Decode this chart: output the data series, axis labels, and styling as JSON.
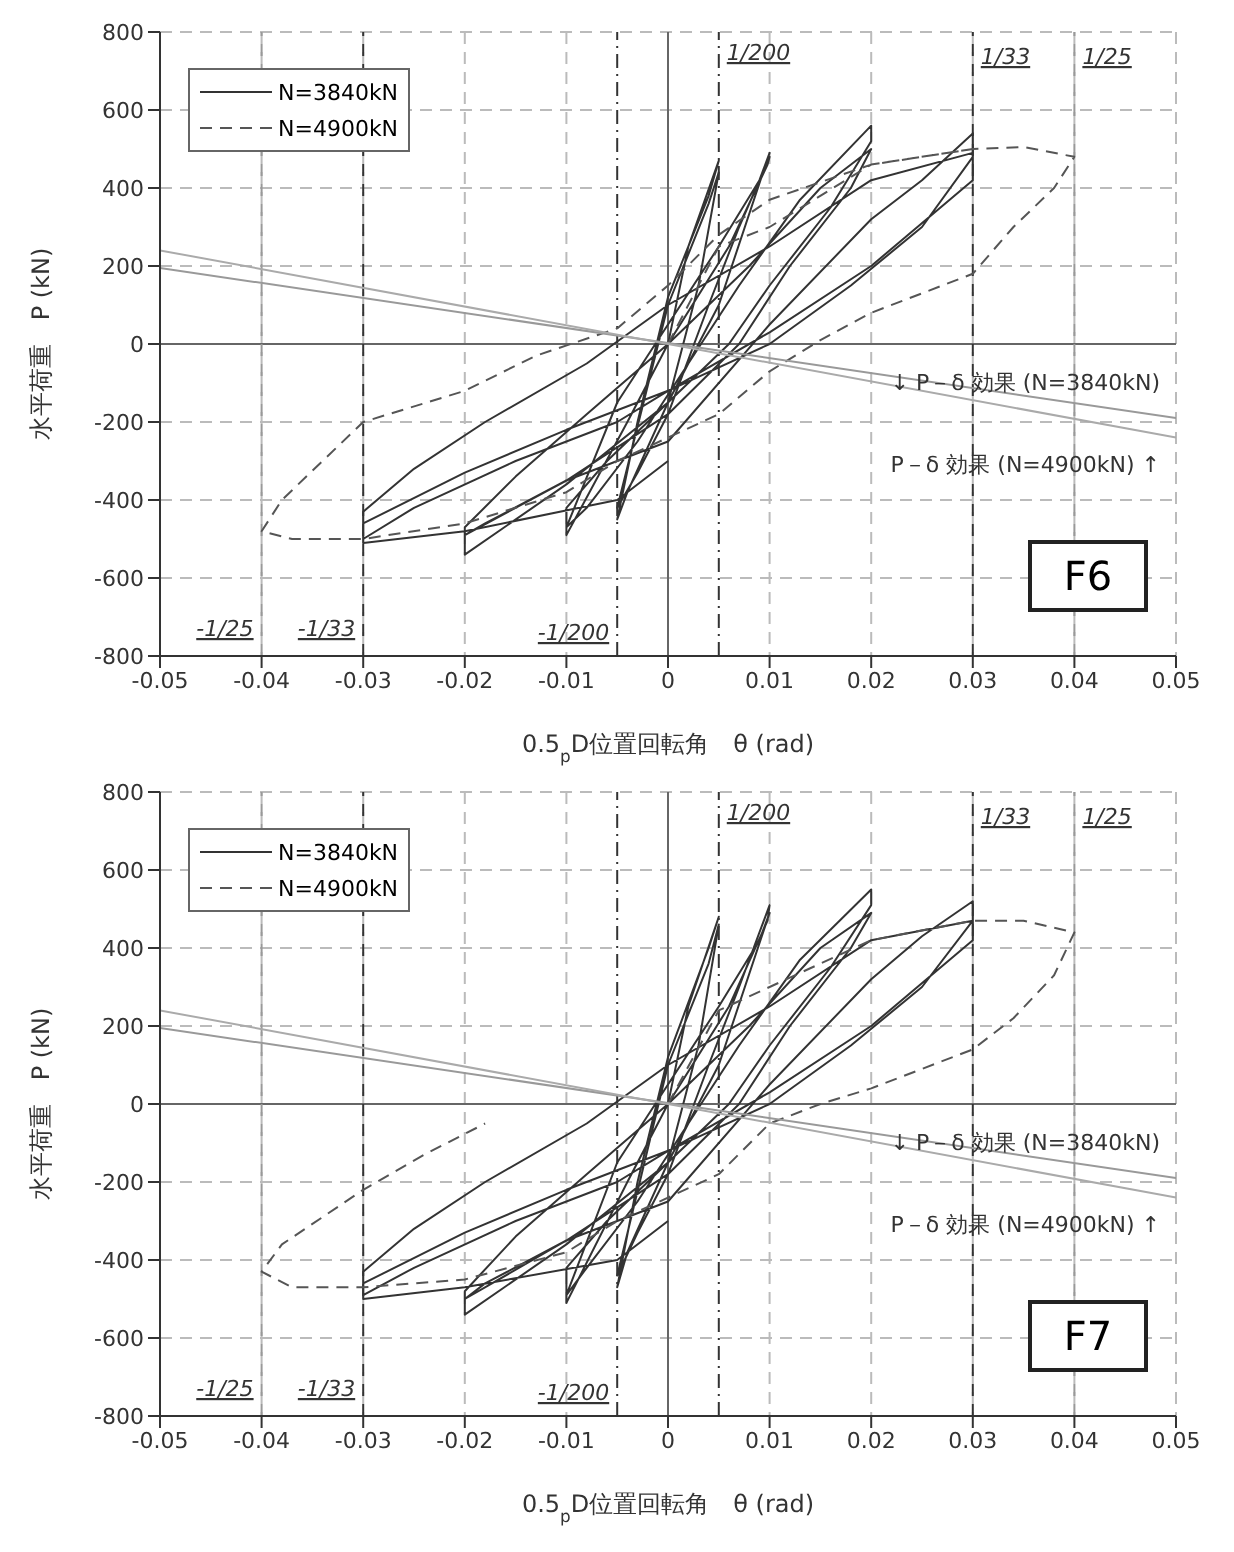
{
  "chart_data": [
    {
      "type": "line",
      "title": "F6",
      "xlabel": "0.5$_{p}$D位置回転角　θ (rad)",
      "ylabel": "水平荷重　P (kN)",
      "xlim": [
        -0.05,
        0.05
      ],
      "xticks": [
        -0.05,
        -0.04,
        -0.03,
        -0.02,
        -0.01,
        0,
        0.01,
        0.02,
        0.03,
        0.04,
        0.05
      ],
      "ylim": [
        -800,
        800
      ],
      "yticks": [
        -800,
        -600,
        -400,
        -200,
        0,
        200,
        400,
        600,
        800
      ],
      "grid": true,
      "legend": "top left",
      "series": [
        {
          "color": "#666666",
          "line_style": "solid",
          "x": [
            -0.05,
            0.05
          ],
          "values": [
            0,
            0
          ]
        },
        {
          "color": "#666666",
          "line_style": "solid",
          "x": [
            0,
            0
          ],
          "values": [
            -800,
            800
          ]
        },
        {
          "color": "#333333",
          "line_style": "dashed",
          "x": [
            0.03,
            0.03
          ],
          "values": [
            -800,
            800
          ]
        },
        {
          "color": "#333333",
          "line_style": "dashed",
          "x": [
            -0.03,
            -0.03
          ],
          "values": [
            -800,
            800
          ]
        },
        {
          "color": "#999999",
          "line_style": "dashed",
          "x": [
            0.04,
            0.04
          ],
          "values": [
            -800,
            800
          ]
        },
        {
          "color": "#999999",
          "line_style": "dashed",
          "x": [
            -0.04,
            -0.04
          ],
          "values": [
            -800,
            800
          ]
        },
        {
          "name": "N=3840kN",
          "color": "#333333",
          "line_style": "solid",
          "x": [
            0,
            0.002,
            0.005,
            0.004,
            0,
            -0.003,
            -0.005,
            -0.004,
            0,
            0.003,
            0.005,
            0.004,
            0,
            -0.005,
            -0.003,
            0,
            0.004,
            0.007,
            0.01,
            0.0098,
            0.006,
            0,
            -0.004,
            -0.01,
            -0.01,
            -0.006,
            0,
            0.005,
            0.01,
            0.009,
            0.005,
            0,
            -0.005,
            -0.01,
            -0.008,
            -0.003,
            0.002,
            0.007,
            0.013,
            0.02,
            0.02,
            0.016,
            0.01,
            0.006,
            0,
            -0.01,
            -0.02,
            -0.02,
            -0.015,
            -0.008,
            0,
            0.008,
            0.015,
            0.02,
            0.018,
            0.012,
            0.007,
            0,
            -0.01,
            -0.02,
            -0.018,
            -0.01,
            0,
            0.01,
            0.02,
            0.025,
            0.03,
            0.03,
            0.025,
            0.018,
            0.01,
            0,
            -0.005,
            -0.015,
            -0.025,
            -0.03,
            -0.03,
            -0.025,
            -0.018,
            -0.008,
            0,
            0.01,
            0.02,
            0.03,
            0.03,
            0.02,
            0.01,
            0,
            -0.01,
            -0.02,
            -0.03,
            -0.03,
            -0.02,
            -0.005,
            0
          ],
          "values": [
            0,
            250,
            470,
            380,
            120,
            -200,
            -450,
            -380,
            -150,
            150,
            440,
            360,
            100,
            -420,
            -330,
            -180,
            100,
            300,
            480,
            460,
            250,
            0,
            -200,
            -490,
            -420,
            -300,
            -150,
            100,
            490,
            420,
            250,
            50,
            -150,
            -470,
            -420,
            -250,
            -50,
            150,
            370,
            560,
            520,
            350,
            150,
            0,
            -150,
            -360,
            -540,
            -470,
            -340,
            -180,
            0,
            200,
            400,
            500,
            400,
            200,
            0,
            -180,
            -350,
            -490,
            -460,
            -350,
            -250,
            50,
            320,
            420,
            540,
            480,
            300,
            150,
            0,
            -120,
            -200,
            -300,
            -420,
            -500,
            -430,
            -320,
            -200,
            -50,
            100,
            250,
            420,
            490,
            420,
            200,
            30,
            -120,
            -220,
            -330,
            -460,
            -510,
            -480,
            -400,
            -300
          ]
        },
        {
          "name": "N=4900kN",
          "color": "#555555",
          "line_style": "dashed",
          "x": [
            0,
            0.005,
            0.01,
            0.02,
            0.03,
            0.035,
            0.04,
            0.038,
            0.034,
            0.03,
            0.02,
            0.015,
            0.01,
            0.005,
            0,
            -0.005,
            -0.01,
            -0.02,
            -0.03,
            -0.037,
            -0.04,
            -0.038,
            -0.03,
            -0.02,
            -0.013,
            -0.005,
            0,
            0.005,
            0.01,
            0.02,
            0.03
          ],
          "values": [
            0,
            250,
            300,
            460,
            500,
            505,
            480,
            400,
            300,
            180,
            80,
            10,
            -70,
            -180,
            -240,
            -300,
            -380,
            -460,
            -500,
            -500,
            -480,
            -400,
            -200,
            -120,
            -30,
            40,
            150,
            280,
            370,
            460,
            500
          ]
        },
        {
          "color": "#999999",
          "line_style": "solid",
          "x": [
            -0.05,
            0.05
          ],
          "values": [
            195,
            -190
          ]
        },
        {
          "color": "#aaaaaa",
          "line_style": "solid",
          "x": [
            -0.05,
            0.05
          ],
          "values": [
            240,
            -240
          ]
        }
      ],
      "ref_lines": [
        {
          "axis": "x",
          "value": 0.005,
          "label": "1/200",
          "line_style": "dashed",
          "color": "#333333"
        },
        {
          "axis": "x",
          "value": -0.005,
          "label": "-1/200",
          "line_style": "dashed",
          "color": "#333333"
        }
      ],
      "annotations": [
        {
          "text": "1/33",
          "x": 0.03,
          "y": 800
        },
        {
          "text": "-1/33",
          "x": -0.03,
          "y": -800
        },
        {
          "text": "1/25",
          "x": 0.04,
          "y": 800
        },
        {
          "text": "-1/25",
          "x": -0.04,
          "y": -800
        },
        "↓ P－δ 効果 (N=3840kN)",
        "P－δ 効果 (N=4900kN) ↑"
      ]
    },
    {
      "type": "line",
      "title": "F7",
      "xlabel": "0.5$_{p}$D位置回転角　θ (rad)",
      "ylabel": "水平荷重　P (kN)",
      "xlim": [
        -0.05,
        0.05
      ],
      "xticks": [
        -0.05,
        -0.04,
        -0.03,
        -0.02,
        -0.01,
        0,
        0.01,
        0.02,
        0.03,
        0.04,
        0.05
      ],
      "ylim": [
        -800,
        800
      ],
      "yticks": [
        -800,
        -600,
        -400,
        -200,
        0,
        200,
        400,
        600,
        800
      ],
      "grid": true,
      "legend": "top left",
      "series": [
        {
          "color": "#666666",
          "line_style": "solid",
          "x": [
            -0.05,
            0.05
          ],
          "values": [
            0,
            0
          ]
        },
        {
          "color": "#666666",
          "line_style": "solid",
          "x": [
            0,
            0
          ],
          "values": [
            -800,
            800
          ]
        },
        {
          "color": "#333333",
          "line_style": "dashed",
          "x": [
            0.03,
            0.03
          ],
          "values": [
            -800,
            800
          ]
        },
        {
          "color": "#333333",
          "line_style": "dashed",
          "x": [
            -0.03,
            -0.03
          ],
          "values": [
            -800,
            800
          ]
        },
        {
          "color": "#999999",
          "line_style": "dashed",
          "x": [
            0.04,
            0.04
          ],
          "values": [
            -800,
            800
          ]
        },
        {
          "color": "#999999",
          "line_style": "dashed",
          "x": [
            -0.04,
            -0.04
          ],
          "values": [
            -800,
            800
          ]
        },
        {
          "name": "N=3840kN",
          "color": "#333333",
          "line_style": "solid",
          "x": [
            0,
            0.002,
            0.005,
            0.004,
            0,
            -0.003,
            -0.005,
            -0.004,
            0,
            0.003,
            0.005,
            0.004,
            0,
            -0.005,
            -0.003,
            0,
            0.004,
            0.007,
            0.01,
            0.0098,
            0.006,
            0,
            -0.004,
            -0.01,
            -0.01,
            -0.006,
            0,
            0.005,
            0.01,
            0.009,
            0.005,
            0,
            -0.005,
            -0.01,
            -0.008,
            -0.003,
            0.002,
            0.007,
            0.013,
            0.02,
            0.02,
            0.016,
            0.01,
            0.006,
            0,
            -0.01,
            -0.02,
            -0.02,
            -0.015,
            -0.008,
            0,
            0.008,
            0.015,
            0.02,
            0.018,
            0.012,
            0.007,
            0,
            -0.01,
            -0.02,
            -0.018,
            -0.01,
            0,
            0.01,
            0.02,
            0.025,
            0.03,
            0.03,
            0.025,
            0.018,
            0.01,
            0,
            -0.005,
            -0.015,
            -0.025,
            -0.03,
            -0.03,
            -0.025,
            -0.018,
            -0.008,
            0,
            0.01,
            0.02,
            0.03,
            0.03,
            0.02,
            0.01,
            0,
            -0.01,
            -0.02,
            -0.03,
            -0.03,
            -0.02,
            -0.005,
            0
          ],
          "values": [
            0,
            250,
            480,
            400,
            120,
            -200,
            -470,
            -380,
            -150,
            150,
            460,
            360,
            100,
            -440,
            -330,
            -180,
            100,
            300,
            510,
            470,
            250,
            0,
            -200,
            -510,
            -420,
            -300,
            -150,
            100,
            490,
            420,
            250,
            50,
            -150,
            -490,
            -420,
            -250,
            -50,
            150,
            370,
            550,
            510,
            350,
            150,
            0,
            -150,
            -360,
            -540,
            -480,
            -340,
            -180,
            0,
            200,
            400,
            490,
            400,
            200,
            0,
            -180,
            -350,
            -500,
            -460,
            -350,
            -250,
            50,
            320,
            430,
            520,
            470,
            300,
            150,
            0,
            -120,
            -200,
            -300,
            -420,
            -490,
            -430,
            -320,
            -200,
            -50,
            100,
            250,
            420,
            470,
            420,
            200,
            30,
            -120,
            -220,
            -330,
            -460,
            -500,
            -470,
            -400,
            -300
          ]
        },
        {
          "name": "N=4900kN",
          "color": "#555555",
          "line_style": "dashed",
          "x": [
            0,
            0.005,
            0.01,
            0.02,
            0.03,
            0.035,
            0.04,
            0.038,
            0.034,
            0.03,
            0.02,
            0.015,
            0.01,
            0.005,
            0,
            -0.005,
            -0.01,
            -0.02,
            -0.03,
            -0.037,
            -0.04,
            -0.038,
            -0.03,
            -0.024,
            -0.018
          ],
          "values": [
            0,
            240,
            300,
            420,
            470,
            470,
            440,
            330,
            220,
            140,
            40,
            0,
            -50,
            -180,
            -240,
            -300,
            -380,
            -450,
            -470,
            -470,
            -430,
            -360,
            -220,
            -130,
            -50
          ]
        },
        {
          "color": "#999999",
          "line_style": "solid",
          "x": [
            -0.05,
            0.05
          ],
          "values": [
            195,
            -190
          ]
        },
        {
          "color": "#aaaaaa",
          "line_style": "solid",
          "x": [
            -0.05,
            0.05
          ],
          "values": [
            240,
            -240
          ]
        }
      ],
      "ref_lines": [
        {
          "axis": "x",
          "value": 0.005,
          "label": "1/200",
          "line_style": "dashed",
          "color": "#333333"
        },
        {
          "axis": "x",
          "value": -0.005,
          "label": "-1/200",
          "line_style": "dashed",
          "color": "#333333"
        }
      ],
      "annotations": [
        {
          "text": "1/33",
          "x": 0.03,
          "y": 800
        },
        {
          "text": "-1/33",
          "x": -0.03,
          "y": -800
        },
        {
          "text": "1/25",
          "x": 0.04,
          "y": 800
        },
        {
          "text": "-1/25",
          "x": -0.04,
          "y": -800
        },
        "↓ P－δ 効果 (N=3840kN)",
        "P－δ 効果 (N=4900kN) ↑"
      ]
    }
  ]
}
